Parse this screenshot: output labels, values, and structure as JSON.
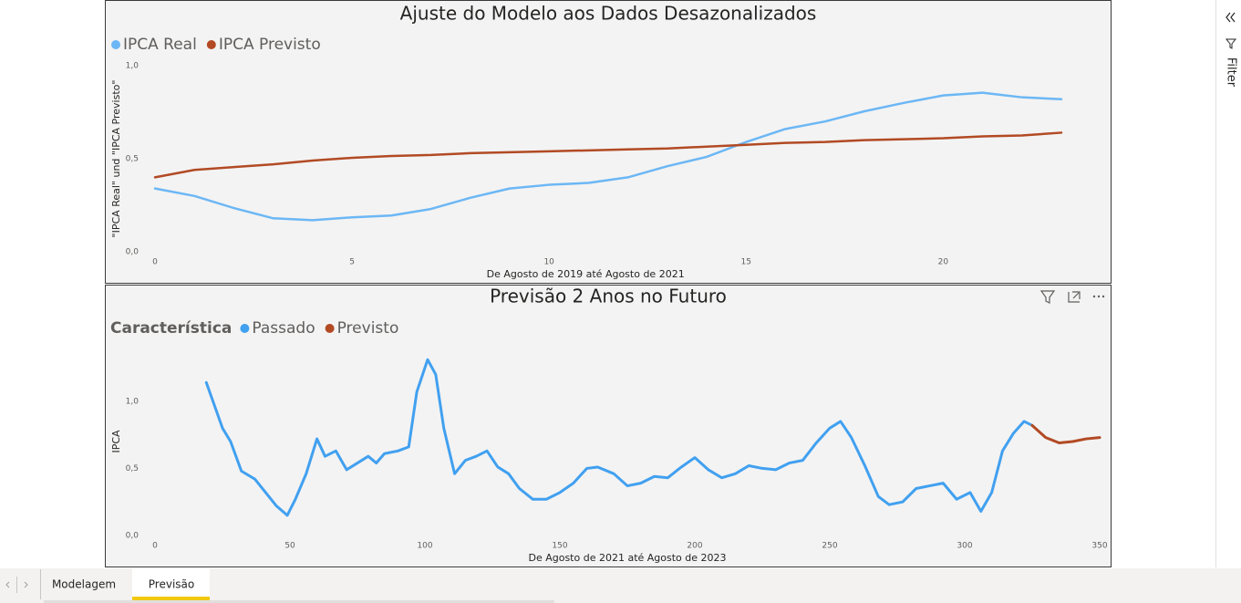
{
  "chart_data": [
    {
      "type": "line",
      "title": "Ajuste do Modelo aos Dados Desazonalizados",
      "x_label": "De Agosto de 2019 até Agosto de 2021",
      "y_label": "\"IPCA Real\" und \"IPCA Previsto\"",
      "x": [
        0,
        1,
        2,
        3,
        4,
        5,
        6,
        7,
        8,
        9,
        10,
        11,
        12,
        13,
        14,
        15,
        16,
        17,
        18,
        19,
        20,
        21,
        22,
        23
      ],
      "series": [
        {
          "name": "IPCA Real",
          "color": "#6cb7f5",
          "values": [
            0.34,
            0.3,
            0.235,
            0.18,
            0.17,
            0.185,
            0.195,
            0.23,
            0.29,
            0.34,
            0.36,
            0.37,
            0.4,
            0.46,
            0.51,
            0.59,
            0.66,
            0.7,
            0.755,
            0.8,
            0.84,
            0.855,
            0.83,
            0.82
          ]
        },
        {
          "name": "IPCA Previsto",
          "color": "#b24a24",
          "values": [
            0.4,
            0.44,
            0.455,
            0.47,
            0.49,
            0.505,
            0.515,
            0.52,
            0.53,
            0.535,
            0.54,
            0.545,
            0.55,
            0.555,
            0.565,
            0.575,
            0.585,
            0.59,
            0.6,
            0.605,
            0.61,
            0.62,
            0.625,
            0.64
          ]
        }
      ],
      "xlim": [
        0,
        23
      ],
      "xticks": [
        0,
        5,
        10,
        15,
        20
      ],
      "ylim": [
        0,
        1.0
      ],
      "yticks": [
        {
          "value": 0,
          "label": "0,0"
        },
        {
          "value": 0.5,
          "label": "0,5"
        },
        {
          "value": 1.0,
          "label": "1,0"
        }
      ],
      "grid": false
    },
    {
      "type": "line",
      "title": "Previsão 2 Anos no Futuro",
      "x_label": "De Agosto de 2021 até Agosto de 2023",
      "y_label": "IPCA",
      "legend_title": "Característica",
      "series": [
        {
          "name": "Passado",
          "color": "#41a0f0",
          "x": [
            19,
            22,
            25,
            28,
            32,
            37,
            41,
            45,
            49,
            52,
            56,
            60,
            63,
            67,
            71,
            75,
            79,
            82,
            85,
            90,
            94,
            97,
            101,
            104,
            107,
            111,
            115,
            119,
            123,
            127,
            131,
            135,
            140,
            145,
            150,
            155,
            160,
            164,
            170,
            175,
            180,
            185,
            190,
            195,
            200,
            205,
            210,
            215,
            220,
            225,
            230,
            235,
            240,
            245,
            250,
            254,
            258,
            263,
            268,
            272,
            277,
            282,
            287,
            292,
            297,
            302,
            306,
            310,
            314,
            318,
            322,
            325
          ],
          "values": [
            1.14,
            0.97,
            0.8,
            0.7,
            0.48,
            0.42,
            0.32,
            0.22,
            0.15,
            0.27,
            0.46,
            0.72,
            0.59,
            0.63,
            0.49,
            0.54,
            0.59,
            0.54,
            0.61,
            0.63,
            0.66,
            1.07,
            1.31,
            1.2,
            0.8,
            0.46,
            0.56,
            0.59,
            0.63,
            0.51,
            0.46,
            0.35,
            0.27,
            0.27,
            0.32,
            0.39,
            0.5,
            0.51,
            0.46,
            0.37,
            0.39,
            0.44,
            0.43,
            0.51,
            0.58,
            0.49,
            0.43,
            0.46,
            0.52,
            0.5,
            0.49,
            0.54,
            0.56,
            0.69,
            0.8,
            0.85,
            0.73,
            0.52,
            0.29,
            0.23,
            0.25,
            0.35,
            0.37,
            0.39,
            0.27,
            0.32,
            0.18,
            0.32,
            0.63,
            0.76,
            0.85,
            0.82
          ]
        },
        {
          "name": "Previsto",
          "color": "#b24a24",
          "x": [
            325,
            330,
            335,
            340,
            345,
            350
          ],
          "values": [
            0.82,
            0.73,
            0.69,
            0.7,
            0.72,
            0.73
          ]
        }
      ],
      "xlim": [
        0,
        350
      ],
      "xticks": [
        0,
        50,
        100,
        150,
        200,
        250,
        300,
        350
      ],
      "ylim": [
        0,
        1.4
      ],
      "yticks": [
        {
          "value": 0,
          "label": "0,0"
        },
        {
          "value": 0.5,
          "label": "0,5"
        },
        {
          "value": 1.0,
          "label": "1,0"
        }
      ],
      "grid": false
    }
  ],
  "ui": {
    "filter_label": "Filter",
    "tabs": [
      "Modelagem",
      "Previsão"
    ]
  }
}
